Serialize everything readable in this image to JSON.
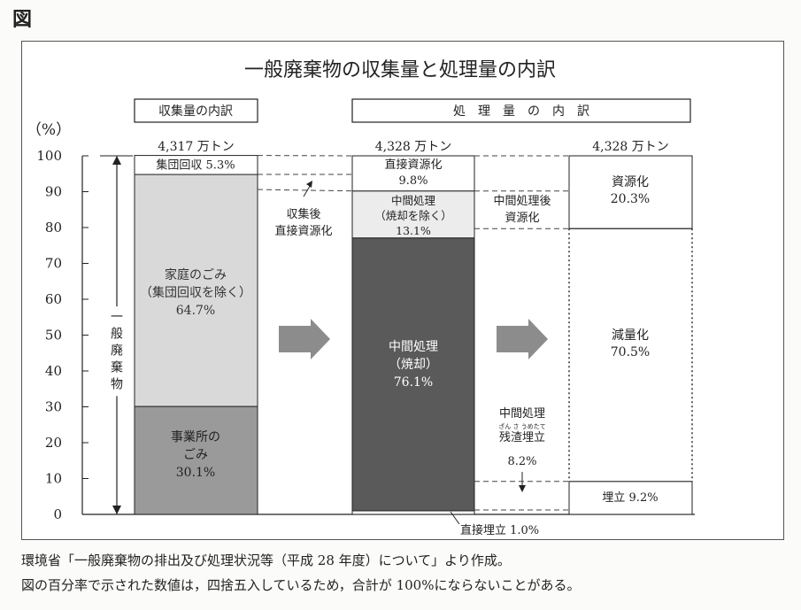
{
  "figure_label": "図",
  "chart_data": {
    "type": "bar",
    "title": "一般廃棄物の収集量と処理量の内訳",
    "ylabel": "（%）",
    "ylim": [
      0,
      100
    ],
    "yticks": [
      "0",
      "10",
      "20",
      "30",
      "40",
      "50",
      "60",
      "70",
      "80",
      "90",
      "100"
    ],
    "section_headers": {
      "collection": "収集量の内訳",
      "treatment": "処　理　量　の　内　訳"
    },
    "bracket_label": "一般廃棄物",
    "columns": [
      {
        "total": "4,317 万トン",
        "segments": [
          {
            "label": "事業所のごみ",
            "value": 30.1,
            "value_label": "30.1%",
            "color": "#9a9a9a"
          },
          {
            "label": "家庭のごみ（集団回収を除く）",
            "value": 64.7,
            "value_label": "64.7%",
            "color": "#d9d9d9"
          },
          {
            "label": "集団回収",
            "value": 5.3,
            "value_label": "5.3%",
            "color": "#ffffff"
          }
        ]
      },
      {
        "total": "4,328 万トン",
        "segments": [
          {
            "label": "直接埋立",
            "value": 1.0,
            "value_label": "1.0%",
            "color": "#ffffff"
          },
          {
            "label": "中間処理（焼却）",
            "value": 76.1,
            "value_label": "76.1%",
            "color": "#5a5a5a"
          },
          {
            "label": "中間処理（焼却を除く）",
            "value": 13.1,
            "value_label": "13.1%",
            "color": "#ececec"
          },
          {
            "label": "直接資源化",
            "value": 9.8,
            "value_label": "9.8%",
            "color": "#ffffff"
          }
        ]
      },
      {
        "total": "4,328 万トン",
        "segments": [
          {
            "label": "埋立",
            "value": 9.2,
            "value_label": "9.2%",
            "color": "#ffffff"
          },
          {
            "label": "減量化",
            "value": 70.5,
            "value_label": "70.5%",
            "color": "#ffffff"
          },
          {
            "label": "資源化",
            "value": 20.3,
            "value_label": "20.3%",
            "color": "#ffffff"
          }
        ]
      }
    ],
    "annotations": {
      "after_collection_direct": "収集後直接資源化",
      "after_intermediate_resource": "中間処理後資源化",
      "intermediate_residue": "中間処理残渣埋立",
      "intermediate_residue_furigana": "ざん さ うめたて",
      "intermediate_residue_value": "8.2%",
      "direct_landfill": "直接埋立 1.0%"
    }
  },
  "notes": [
    "環境省「一般廃棄物の排出及び処理状況等（平成 28 年度）について」より作成。",
    "図の百分率で示された数値は，四捨五入しているため，合計が 100%にならないことがある。"
  ]
}
